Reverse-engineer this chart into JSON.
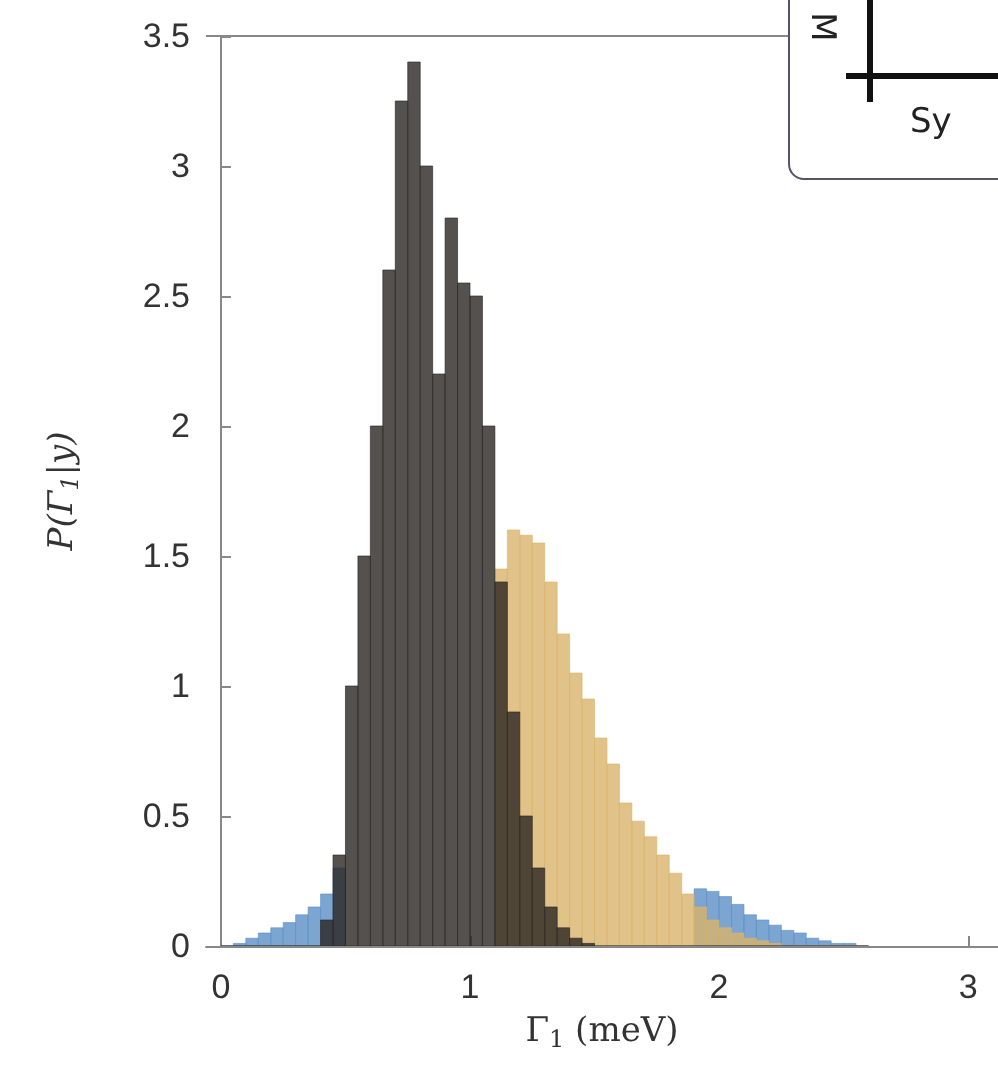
{
  "chart_data": {
    "type": "histogram",
    "xlabel": "Γ$_{1}$ (meV)",
    "ylabel": "P(Γ$_{1}$|y)",
    "bins": [
      0,
      0.05,
      0.1,
      0.15,
      0.2,
      0.25,
      0.3,
      0.35,
      0.4,
      0.45,
      0.5,
      0.55,
      0.6,
      0.65,
      0.7,
      0.75,
      0.8,
      0.85,
      0.9,
      0.95,
      1,
      1.05,
      1.1,
      1.15,
      1.2,
      1.25,
      1.3,
      1.35,
      1.4,
      1.45,
      1.5,
      1.55,
      1.6,
      1.65,
      1.7,
      1.75,
      1.8,
      1.85,
      1.9,
      1.95,
      2,
      2.05,
      2.1,
      2.15,
      2.2,
      2.25,
      2.3,
      2.35,
      2.4,
      2.45,
      2.5,
      2.55,
      2.6
    ],
    "series": [
      {
        "color": "#5b8fc7",
        "values": [
          0,
          0.01,
          0.03,
          0.05,
          0.07,
          0.09,
          0.12,
          0.15,
          0.2,
          0.3,
          null,
          null,
          null,
          null,
          null,
          null,
          null,
          null,
          null,
          null,
          null,
          null,
          null,
          null,
          null,
          null,
          null,
          null,
          null,
          null,
          null,
          null,
          null,
          null,
          null,
          null,
          null,
          null,
          0.22,
          0.21,
          0.19,
          0.16,
          0.12,
          0.1,
          0.08,
          0.06,
          0.05,
          0.03,
          0.02,
          0.01,
          0.01,
          0
        ]
      },
      {
        "color": "#d9b36a",
        "values": [
          null,
          null,
          null,
          null,
          null,
          null,
          null,
          null,
          null,
          null,
          null,
          null,
          null,
          null,
          null,
          null,
          null,
          null,
          null,
          null,
          null,
          null,
          1.45,
          1.6,
          1.58,
          1.55,
          1.4,
          1.2,
          1.05,
          0.95,
          0.8,
          0.7,
          0.55,
          0.48,
          0.42,
          0.35,
          0.28,
          0.2,
          0.15,
          0.1,
          0.07,
          0.05,
          0.03,
          0.02,
          0.01,
          0,
          0,
          0,
          0,
          0,
          0,
          0
        ]
      },
      {
        "color": "#2a2522",
        "values": [
          0,
          0,
          0,
          0,
          0,
          0,
          0,
          0,
          0.1,
          0.35,
          1,
          1.5,
          2,
          2.6,
          3.25,
          3.4,
          3,
          2.2,
          2.8,
          2.55,
          2.5,
          2,
          1.4,
          0.9,
          0.5,
          0.3,
          0.15,
          0.07,
          0.03,
          0.01,
          0,
          0,
          0,
          0,
          0,
          0,
          0,
          0,
          0,
          0,
          0,
          0,
          0,
          0,
          0,
          0,
          0,
          0,
          0,
          0,
          0,
          0
        ]
      }
    ],
    "xlim": [
      -0.06,
      3.12
    ],
    "ylim": [
      0,
      3.5
    ],
    "xticks": [
      0,
      1,
      2,
      3
    ],
    "yticks": [
      0,
      0.5,
      1,
      1.5,
      2,
      2.5,
      3,
      3.5
    ],
    "grid": false,
    "legend": false,
    "annotations": [
      "M",
      "Sy"
    ]
  }
}
